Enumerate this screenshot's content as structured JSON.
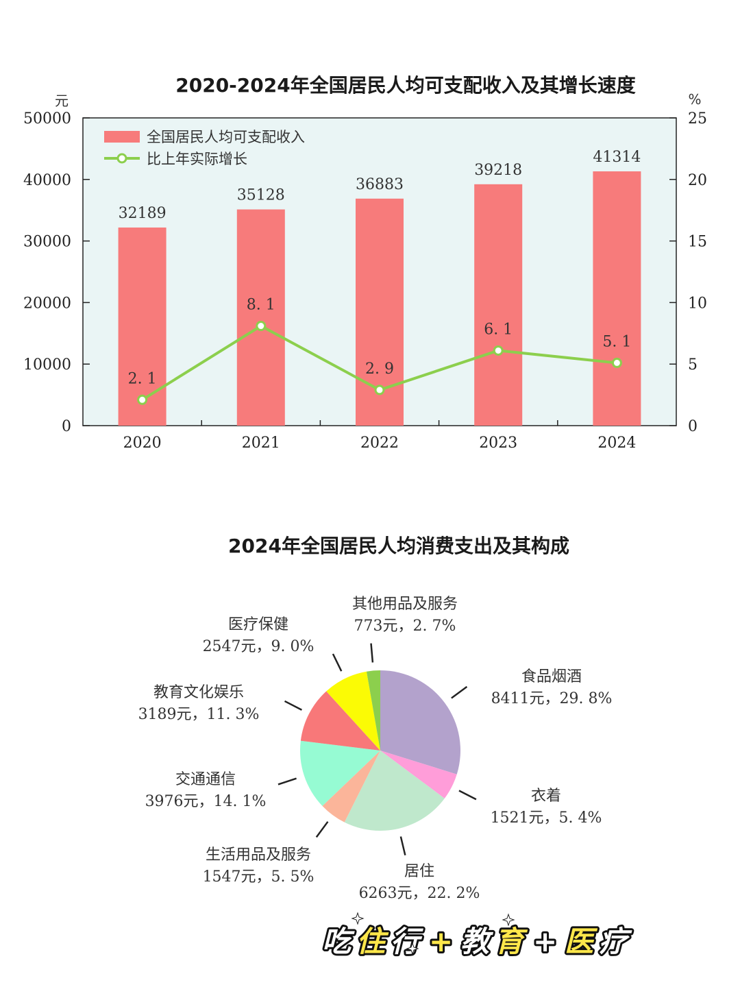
{
  "chart_data": [
    {
      "type": "bar",
      "title": "2020-2024年全国居民人均可支配收入及其增长速度",
      "categories": [
        "2020",
        "2021",
        "2022",
        "2023",
        "2024"
      ],
      "y_left_unit": "元",
      "y_right_unit": "%",
      "ylim": [
        0,
        50000
      ],
      "ylim_right": [
        0,
        25
      ],
      "yticks_left": [
        "0",
        "10000",
        "20000",
        "30000",
        "40000",
        "50000"
      ],
      "yticks_right": [
        "0",
        "5",
        "10",
        "15",
        "20",
        "25"
      ],
      "series": [
        {
          "name": "全国居民人均可支配收入",
          "type": "bar",
          "axis": "left",
          "values": [
            32189,
            35128,
            36883,
            39218,
            41314
          ],
          "labels": [
            "32189",
            "35128",
            "36883",
            "39218",
            "41314"
          ],
          "color": "#f77b7b"
        },
        {
          "name": "比上年实际增长",
          "type": "line",
          "axis": "right",
          "values": [
            2.1,
            8.1,
            2.9,
            6.1,
            5.1
          ],
          "labels": [
            "2. 1",
            "8. 1",
            "2. 9",
            "6. 1",
            "5. 1"
          ],
          "color": "#8ccf4d"
        }
      ],
      "legend_position": "top-left",
      "plot_background": "#eaf5f5"
    },
    {
      "type": "pie",
      "title": "2024年全国居民人均消费支出及其构成",
      "slices": [
        {
          "name": "食品烟酒",
          "value": 8411,
          "percent": 29.8,
          "label_line2": "8411元，29. 8%",
          "color": "#b3a2cc"
        },
        {
          "name": "衣着",
          "value": 1521,
          "percent": 5.4,
          "label_line2": "1521元，5. 4%",
          "color": "#ff9dd9"
        },
        {
          "name": "居住",
          "value": 6263,
          "percent": 22.2,
          "label_line2": "6263元，22. 2%",
          "color": "#bfe8cc"
        },
        {
          "name": "生活用品及服务",
          "value": 1547,
          "percent": 5.5,
          "label_line2": "1547元，5. 5%",
          "color": "#fbb59a"
        },
        {
          "name": "交通通信",
          "value": 3976,
          "percent": 14.1,
          "label_line2": "3976元，14. 1%",
          "color": "#96fbd3"
        },
        {
          "name": "教育文化娱乐",
          "value": 3189,
          "percent": 11.3,
          "label_line2": "3189元，11. 3%",
          "color": "#f87879"
        },
        {
          "name": "医疗保健",
          "value": 2547,
          "percent": 9.0,
          "label_line2": "2547元，9. 0%",
          "color": "#fbfb05"
        },
        {
          "name": "其他用品及服务",
          "value": 773,
          "percent": 2.7,
          "label_line2": "773元，2. 7%",
          "color": "#8ccf4d"
        }
      ]
    }
  ],
  "slogan": {
    "parts": [
      {
        "text": "吃",
        "color": "#ffffff"
      },
      {
        "text": "住",
        "color": "#ffe74a"
      },
      {
        "text": "行",
        "color": "#ffffff"
      },
      {
        "text": "+",
        "color": "#ffe74a"
      },
      {
        "text": "教",
        "color": "#ffffff"
      },
      {
        "text": "育",
        "color": "#ffe74a"
      },
      {
        "text": "+",
        "color": "#ffffff"
      },
      {
        "text": "医",
        "color": "#ffe74a"
      },
      {
        "text": "疗",
        "color": "#ffffff"
      }
    ]
  }
}
